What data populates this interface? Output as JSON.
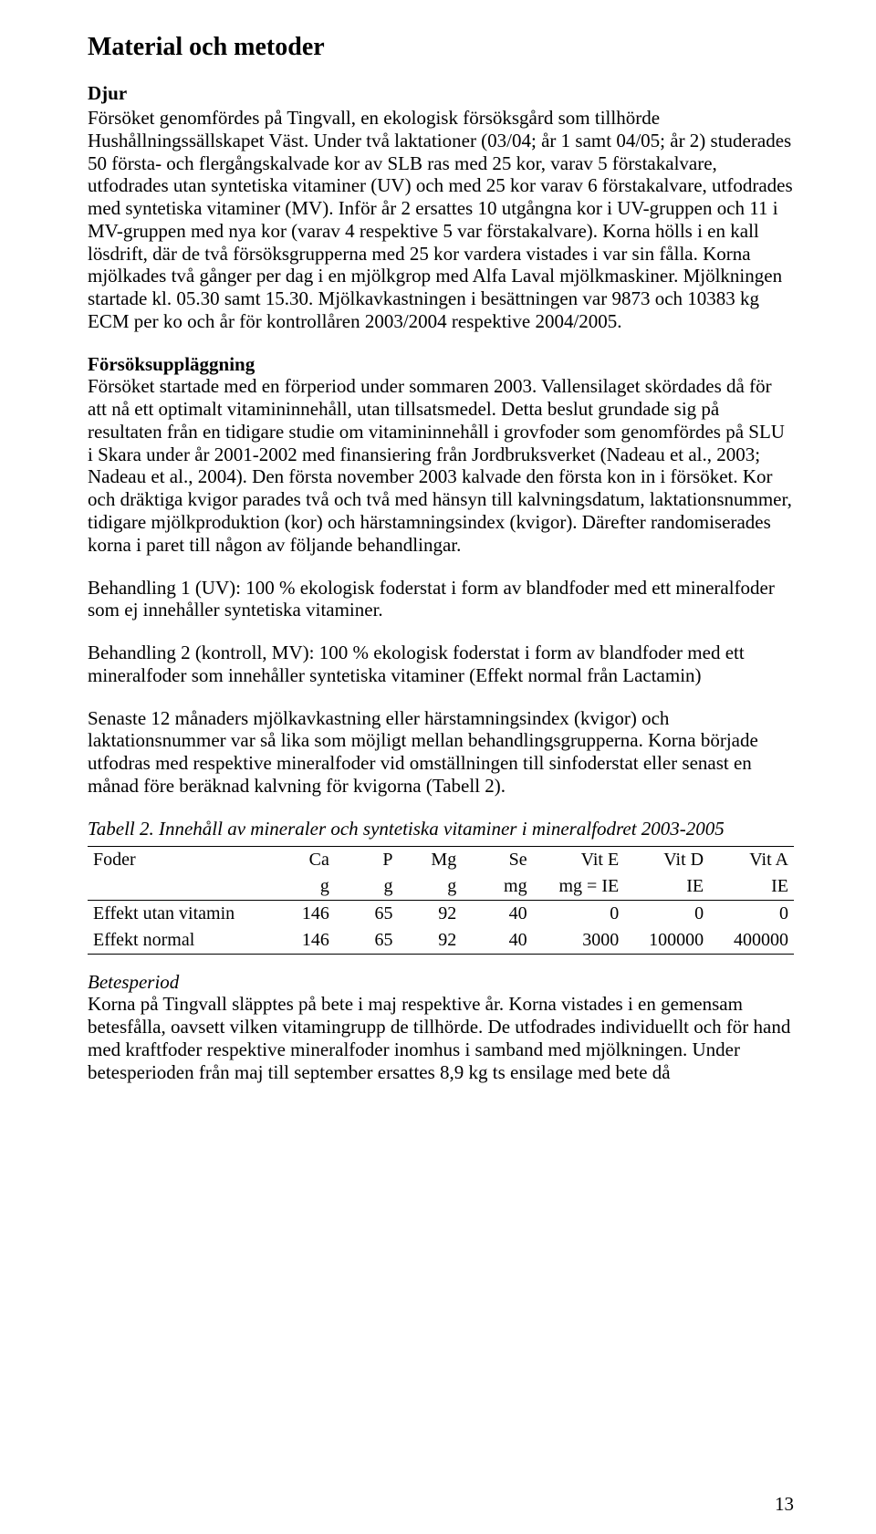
{
  "title_main": "Material och metoder",
  "section_djur_title": "Djur",
  "para_djur": "Försöket genomfördes på Tingvall, en ekologisk försöksgård som tillhörde Hushållningssällskapet Väst. Under två laktationer (03/04; år 1 samt 04/05; år 2) studerades 50 första- och flergångskalvade kor av SLB ras med 25 kor, varav 5 förstakalvare, utfodrades utan syntetiska vitaminer (UV) och med 25 kor varav 6 förstakalvare, utfodrades med syntetiska vitaminer (MV). Inför år 2 ersattes 10 utgångna kor i UV-gruppen och 11 i MV-gruppen med nya kor (varav 4 respektive 5 var förstakalvare). Korna hölls i en kall lösdrift, där de två försöksgrupperna med 25 kor vardera vistades i var sin fålla. Korna mjölkades två gånger per dag i en mjölkgrop med Alfa Laval mjölkmaskiner. Mjölkningen startade kl. 05.30 samt 15.30. Mjölkavkastningen i besättningen var 9873 och 10383 kg ECM per ko och år för kontrollåren 2003/2004 respektive 2004/2005.",
  "section_forsok_title": "Försöksuppläggning",
  "para_forsok1": "Försöket startade med en förperiod under sommaren 2003. Vallensilaget skördades då för att nå ett optimalt vitamininnehåll, utan tillsatsmedel. Detta beslut grundade sig på resultaten från en tidigare studie om vitamininnehåll i grovfoder som genomfördes på SLU i Skara under år 2001-2002 med finansiering från Jordbruksverket (Nadeau et al., 2003; Nadeau et al., 2004). Den första november 2003 kalvade den första kon in i försöket. Kor och dräktiga kvigor parades två och två med hänsyn till kalvningsdatum, laktationsnummer, tidigare mjölkproduktion (kor) och härstamningsindex (kvigor). Därefter randomiserades korna i paret till någon av följande behandlingar.",
  "para_beh1": "Behandling 1 (UV): 100 % ekologisk foderstat i form av blandfoder med ett mineralfoder som ej innehåller syntetiska vitaminer.",
  "para_beh2": "Behandling 2 (kontroll, MV): 100 % ekologisk foderstat i form av blandfoder med ett mineralfoder som innehåller syntetiska vitaminer (Effekt normal från Lactamin)",
  "para_senaste": "Senaste 12 månaders mjölkavkastning eller härstamningsindex (kvigor) och laktationsnummer var så lika som möjligt mellan behandlingsgrupperna. Korna började utfodras med respektive mineralfoder vid omställningen till sinfoderstat eller senast en månad före beräknad kalvning för kvigorna (Tabell 2).",
  "table": {
    "caption": "Tabell 2. Innehåll av mineraler och syntetiska vitaminer i mineralfodret 2003-2005",
    "columns": [
      "Foder",
      "Ca",
      "P",
      "Mg",
      "Se",
      "Vit E",
      "Vit D",
      "Vit A"
    ],
    "units": [
      "",
      "g",
      "g",
      "g",
      "mg",
      "mg = IE",
      "IE",
      "IE"
    ],
    "rows": [
      [
        "Effekt utan vitamin",
        "146",
        "65",
        "92",
        "40",
        "0",
        "0",
        "0"
      ],
      [
        "Effekt normal",
        "146",
        "65",
        "92",
        "40",
        "3000",
        "100000",
        "400000"
      ]
    ],
    "col_widths": [
      "26%",
      "9%",
      "9%",
      "9%",
      "10%",
      "13%",
      "12%",
      "12%"
    ]
  },
  "section_betes_title": "Betesperiod",
  "para_betes": "Korna på Tingvall släpptes på bete i maj respektive år. Korna vistades i en gemensam betesfålla, oavsett vilken vitamingrupp de tillhörde. De utfodrades individuellt och för hand med kraftfoder respektive mineralfoder inomhus i samband med mjölkningen. Under betesperioden från maj till september ersattes 8,9 kg ts ensilage med bete då",
  "page_number": "13"
}
